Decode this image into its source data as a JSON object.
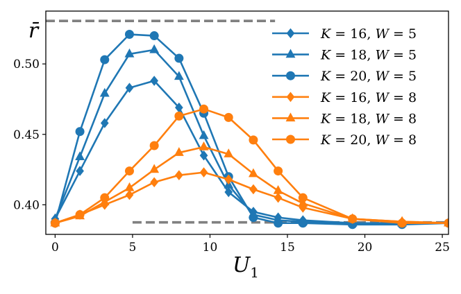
{
  "chart_data": {
    "type": "line",
    "title": "",
    "xlabel": "U",
    "xlabel_sub": "1",
    "ylabel": "r̄",
    "xlim": [
      -0.6,
      25.4
    ],
    "ylim": [
      0.379,
      0.5375
    ],
    "xticks": [
      0,
      5,
      10,
      15,
      20,
      25
    ],
    "xtick_labels": [
      "0",
      "5",
      "10",
      "15",
      "20",
      "25"
    ],
    "yticks": [
      0.4,
      0.45,
      0.5
    ],
    "ytick_labels": [
      "0.40",
      "0.45",
      "0.50"
    ],
    "grid": false,
    "legend_position": "top-right",
    "reference_lines": [
      {
        "y": 0.5305,
        "x_from": -0.6,
        "x_to": 14.2,
        "color": "#808080",
        "style": "dashed"
      },
      {
        "y": 0.3875,
        "x_from": 5.0,
        "x_to": 25.4,
        "color": "#808080",
        "style": "dashed"
      }
    ],
    "series": [
      {
        "name": "K = 16, W = 5",
        "K": "16",
        "W": "5",
        "color": "#1f77b4",
        "marker": "diamond",
        "x": [
          0,
          1.6,
          3.2,
          4.8,
          6.4,
          8.0,
          9.6,
          11.2,
          12.8,
          14.4,
          16.0,
          19.2,
          22.4,
          25.4
        ],
        "values": [
          0.39,
          0.424,
          0.458,
          0.483,
          0.488,
          0.469,
          0.435,
          0.409,
          0.395,
          0.391,
          0.389,
          0.387,
          0.387,
          0.387
        ]
      },
      {
        "name": "K = 18, W = 5",
        "K": "18",
        "W": "5",
        "color": "#1f77b4",
        "marker": "triangle",
        "x": [
          0,
          1.6,
          3.2,
          4.8,
          6.4,
          8.0,
          9.6,
          11.2,
          12.8,
          14.4,
          16.0,
          19.2,
          22.4,
          25.4
        ],
        "values": [
          0.39,
          0.434,
          0.479,
          0.507,
          0.51,
          0.491,
          0.449,
          0.414,
          0.393,
          0.389,
          0.388,
          0.387,
          0.387,
          0.387
        ]
      },
      {
        "name": "K = 20, W = 5",
        "K": "20",
        "W": "5",
        "color": "#1f77b4",
        "marker": "circle",
        "x": [
          0,
          1.6,
          3.2,
          4.8,
          6.4,
          8.0,
          9.6,
          11.2,
          12.8,
          14.4,
          16.0,
          19.2,
          22.4,
          25.4
        ],
        "values": [
          0.387,
          0.452,
          0.503,
          0.521,
          0.52,
          0.504,
          0.465,
          0.42,
          0.391,
          0.387,
          0.387,
          0.386,
          0.386,
          0.387
        ]
      },
      {
        "name": "K = 16, W = 8",
        "K": "16",
        "W": "8",
        "color": "#ff7f0e",
        "marker": "diamond",
        "x": [
          0,
          1.6,
          3.2,
          4.8,
          6.4,
          8.0,
          9.6,
          11.2,
          12.8,
          14.4,
          16.0,
          19.2,
          22.4,
          25.4
        ],
        "values": [
          0.387,
          0.393,
          0.4,
          0.407,
          0.416,
          0.421,
          0.423,
          0.418,
          0.411,
          0.405,
          0.398,
          0.39,
          0.388,
          0.387
        ]
      },
      {
        "name": "K = 18, W = 8",
        "K": "18",
        "W": "8",
        "color": "#ff7f0e",
        "marker": "triangle",
        "x": [
          0,
          1.6,
          3.2,
          4.8,
          6.4,
          8.0,
          9.6,
          11.2,
          12.8,
          14.4,
          16.0,
          19.2,
          22.4,
          25.4
        ],
        "values": [
          0.387,
          0.392,
          0.402,
          0.412,
          0.425,
          0.437,
          0.441,
          0.436,
          0.422,
          0.41,
          0.401,
          0.39,
          0.388,
          0.387
        ]
      },
      {
        "name": "K = 20, W = 8",
        "K": "20",
        "W": "8",
        "color": "#ff7f0e",
        "marker": "circle",
        "x": [
          0,
          1.6,
          3.2,
          4.8,
          6.4,
          8.0,
          9.6,
          11.2,
          12.8,
          14.4,
          16.0,
          19.2,
          22.4,
          25.4
        ],
        "values": [
          0.387,
          0.393,
          0.405,
          0.424,
          0.442,
          0.463,
          0.468,
          0.462,
          0.446,
          0.424,
          0.405,
          0.39,
          0.387,
          0.387
        ]
      }
    ]
  }
}
